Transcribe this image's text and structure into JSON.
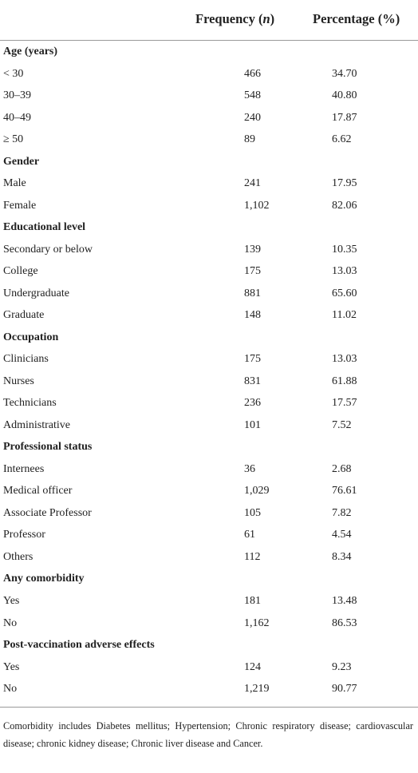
{
  "header": {
    "frequency": [
      "Frequency (",
      "n",
      ")"
    ],
    "percentage": "Percentage (%)"
  },
  "sections": [
    {
      "title": "Age (years)",
      "rows": [
        [
          "< 30",
          "466",
          "34.70"
        ],
        [
          "30–39",
          "548",
          "40.80"
        ],
        [
          "40–49",
          "240",
          "17.87"
        ],
        [
          "≥ 50",
          "89",
          "6.62"
        ]
      ]
    },
    {
      "title": "Gender",
      "rows": [
        [
          "Male",
          "241",
          "17.95"
        ],
        [
          "Female",
          "1,102",
          "82.06"
        ]
      ]
    },
    {
      "title": "Educational level",
      "rows": [
        [
          "Secondary or below",
          "139",
          "10.35"
        ],
        [
          "College",
          "175",
          "13.03"
        ],
        [
          "Undergraduate",
          "881",
          "65.60"
        ],
        [
          "Graduate",
          "148",
          "11.02"
        ]
      ]
    },
    {
      "title": "Occupation",
      "rows": [
        [
          "Clinicians",
          "175",
          "13.03"
        ],
        [
          "Nurses",
          "831",
          "61.88"
        ],
        [
          "Technicians",
          "236",
          "17.57"
        ],
        [
          "Administrative",
          "101",
          "7.52"
        ]
      ]
    },
    {
      "title": "Professional status",
      "rows": [
        [
          "Internees",
          "36",
          "2.68"
        ],
        [
          "Medical officer",
          "1,029",
          "76.61"
        ],
        [
          "Associate Professor",
          "105",
          "7.82"
        ],
        [
          "Professor",
          "61",
          "4.54"
        ],
        [
          "Others",
          "112",
          "8.34"
        ]
      ]
    },
    {
      "title": "Any comorbidity",
      "rows": [
        [
          "Yes",
          "181",
          "13.48"
        ],
        [
          "No",
          "1,162",
          "86.53"
        ]
      ]
    },
    {
      "title": "Post-vaccination adverse effects",
      "rows": [
        [
          "Yes",
          "124",
          "9.23"
        ],
        [
          "No",
          "1,219",
          "90.77"
        ]
      ]
    }
  ],
  "footnote": "Comorbidity includes Diabetes mellitus; Hypertension; Chronic respiratory disease; cardiovascular disease; chronic kidney disease; Chronic liver disease and Cancer."
}
